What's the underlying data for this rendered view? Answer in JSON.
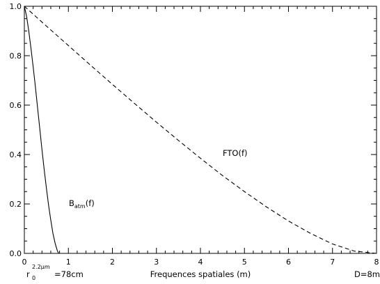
{
  "chart_data": {
    "type": "line",
    "xlabel": "Frequences spatiales (m)",
    "ylabel": "",
    "xlim": [
      0,
      8
    ],
    "ylim": [
      0,
      1
    ],
    "x_ticks": [
      0,
      1,
      2,
      3,
      4,
      5,
      6,
      7,
      8
    ],
    "y_ticks": [
      0.0,
      0.2,
      0.4,
      0.6,
      0.8,
      1.0
    ],
    "y_tick_labels": [
      "0.0",
      "0.2",
      "0.4",
      "0.6",
      "0.8",
      "1.0"
    ],
    "grid": false,
    "series": [
      {
        "name_parts": {
          "base": "B",
          "sub": "atm",
          "rest": "(f)"
        },
        "style": "solid",
        "color": "#000000",
        "x": [
          0,
          0.05,
          0.1,
          0.15,
          0.2,
          0.25,
          0.3,
          0.35,
          0.4,
          0.45,
          0.5,
          0.55,
          0.6,
          0.65,
          0.7,
          0.75,
          0.78
        ],
        "y": [
          1.0,
          0.96,
          0.9,
          0.83,
          0.755,
          0.675,
          0.59,
          0.505,
          0.42,
          0.34,
          0.265,
          0.195,
          0.135,
          0.08,
          0.04,
          0.01,
          0.0
        ]
      },
      {
        "name": "FTO(f)",
        "style": "dashed",
        "color": "#000000",
        "x": [
          0,
          0.5,
          1,
          1.5,
          2,
          2.5,
          3,
          3.5,
          4,
          4.5,
          5,
          5.5,
          6,
          6.5,
          7,
          7.5,
          8
        ],
        "y": [
          1.0,
          0.92,
          0.841,
          0.762,
          0.684,
          0.607,
          0.531,
          0.457,
          0.385,
          0.315,
          0.25,
          0.188,
          0.131,
          0.081,
          0.038,
          0.009,
          0.0
        ]
      }
    ],
    "annotations": {
      "fto_label": "FTO(f)",
      "batm_base": "B",
      "batm_sub": "atm",
      "batm_rest": "(f)",
      "r0_base": "r",
      "r0_sub": "0",
      "r0_sup": "2.2μm",
      "r0_value": "=78cm",
      "d_label": "D=8m"
    }
  }
}
